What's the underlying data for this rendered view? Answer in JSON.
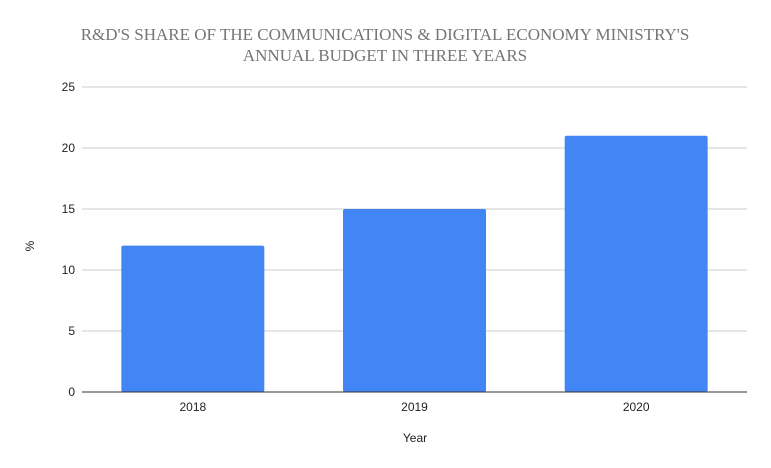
{
  "chart_data": {
    "type": "bar",
    "title": "R&D'S SHARE OF THE COMMUNICATIONS & DIGITAL ECONOMY MINISTRY'S ANNUAL BUDGET IN THREE YEARS",
    "title_lines": [
      "R&D'S SHARE OF THE COMMUNICATIONS & DIGITAL ECONOMY MINISTRY'S",
      "ANNUAL BUDGET IN THREE YEARS"
    ],
    "xlabel": "Year",
    "ylabel": "%",
    "categories": [
      "2018",
      "2019",
      "2020"
    ],
    "values": [
      12,
      15,
      21
    ],
    "ylim": [
      0,
      25
    ],
    "yticks": [
      0,
      5,
      10,
      15,
      20,
      25
    ],
    "grid": true,
    "legend": "none",
    "bar_color": "#4285f4"
  }
}
